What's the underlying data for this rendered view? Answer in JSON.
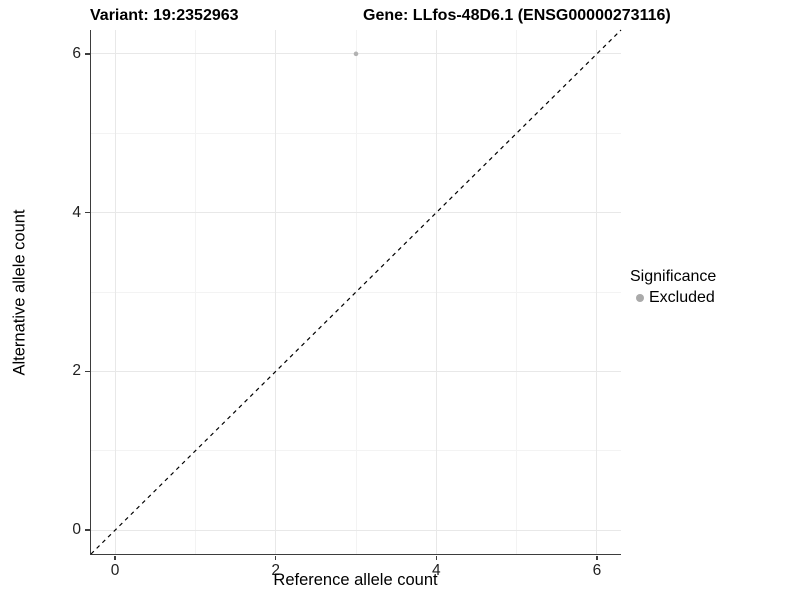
{
  "chart_data": {
    "type": "scatter",
    "titles": {
      "variant": "Variant: 19:2352963",
      "gene": "Gene: LLfos-48D6.1 (ENSG00000273116)"
    },
    "xlabel": "Reference allele count",
    "ylabel": "Alternative allele count",
    "xlim": [
      -0.3,
      6.3
    ],
    "ylim": [
      -0.3,
      6.3
    ],
    "x_ticks": [
      0,
      2,
      4,
      6
    ],
    "y_ticks": [
      0,
      2,
      4,
      6
    ],
    "x_minor_ticks": [
      1,
      3,
      5
    ],
    "y_minor_ticks": [
      1,
      3,
      5
    ],
    "grid": "major and minor gridlines on white panel",
    "reference_line": {
      "type": "identity",
      "slope": 1,
      "intercept": 0,
      "style": "dashed",
      "color": "#000000"
    },
    "series": [
      {
        "name": "Excluded",
        "color": "#b2b2b2",
        "points": [
          {
            "x": 3,
            "y": 6
          }
        ]
      }
    ],
    "legend": {
      "title": "Significance",
      "position": "right",
      "items": [
        {
          "label": "Excluded",
          "color": "#aaaaaa"
        }
      ]
    }
  },
  "colors": {
    "background": "#ffffff",
    "grid_major": "#e8e8e8",
    "grid_minor": "#f3f3f3",
    "axis_line": "#3d3d3d",
    "tick_label": "#1f1f1f"
  }
}
